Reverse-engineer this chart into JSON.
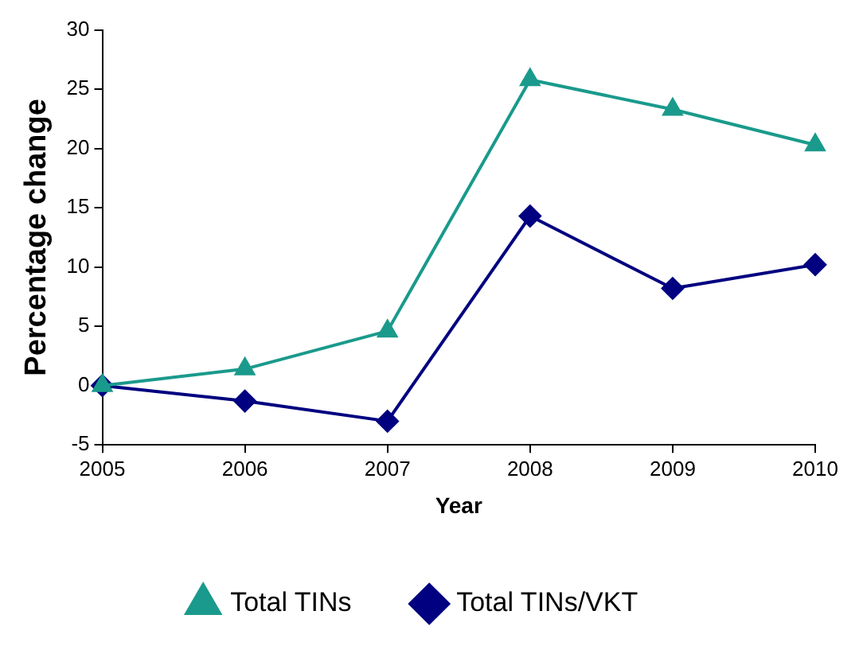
{
  "chart_data": {
    "type": "line",
    "xlabel": "Year",
    "ylabel": "Percentage change",
    "categories": [
      "2005",
      "2006",
      "2007",
      "2008",
      "2009",
      "2010"
    ],
    "series": [
      {
        "name": "Total TINs",
        "color": "#1a9a8c",
        "marker": "triangle",
        "values": [
          0,
          1.4,
          4.6,
          25.8,
          23.3,
          20.3
        ]
      },
      {
        "name": "Total TINs/VKT",
        "color": "#000080",
        "marker": "diamond",
        "values": [
          0,
          -1.3,
          -3.0,
          14.3,
          8.2,
          10.2
        ]
      }
    ],
    "ylim": [
      -5,
      30
    ],
    "yticks": [
      -5,
      0,
      5,
      10,
      15,
      20,
      25,
      30
    ],
    "grid": false,
    "legend": "bottom"
  }
}
